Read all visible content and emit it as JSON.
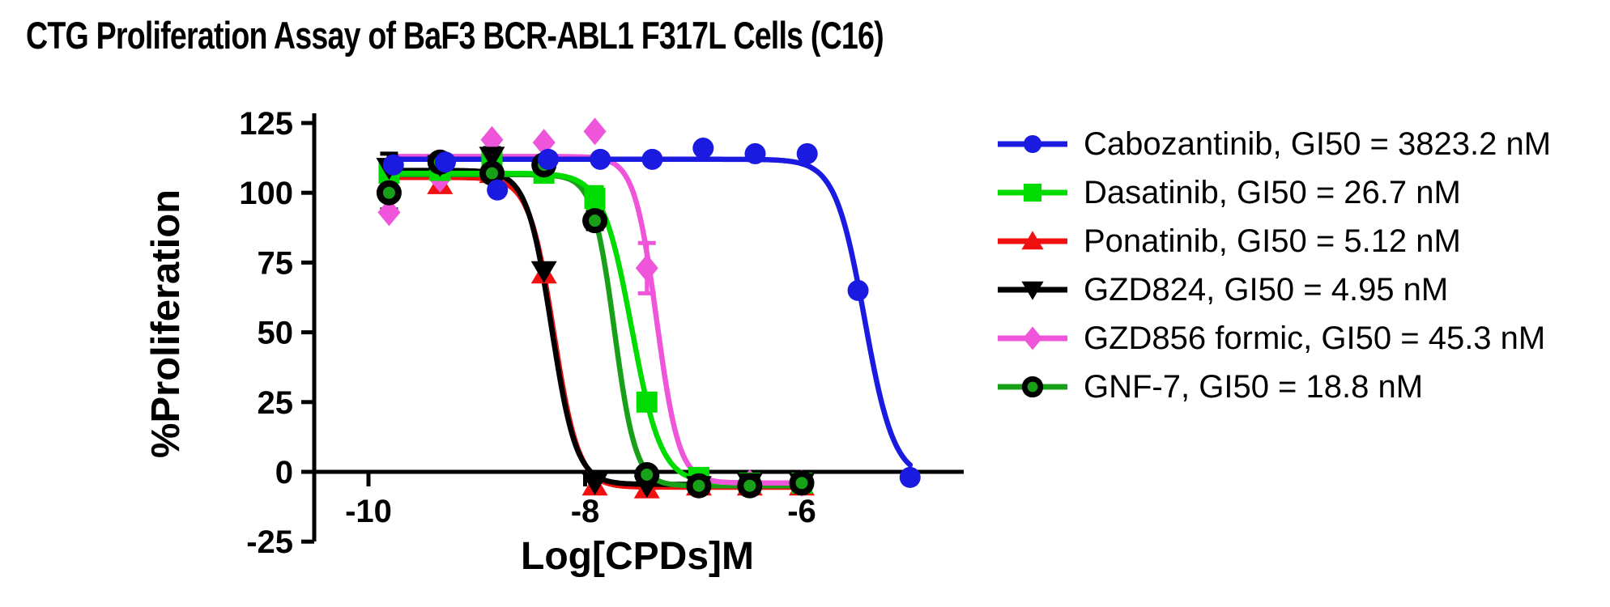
{
  "title": "CTG Proliferation Assay of BaF3 BCR-ABL1 F317L Cells (C16)",
  "chart_data": {
    "type": "line",
    "subtype": "dose-response scatter with 4-parameter logistic fit curves",
    "title": "CTG Proliferation Assay of BaF3 BCR-ABL1 F317L Cells (C16)",
    "xlabel": "Log[CPDs]M",
    "ylabel": "%Proliferation",
    "xticks": [
      -10,
      -8,
      -6
    ],
    "yticks": [
      125,
      100,
      75,
      50,
      25,
      0,
      -25
    ],
    "xlim": [
      -10.5,
      -4.5
    ],
    "ylim": [
      -25,
      125
    ],
    "grid": false,
    "legend_position": "right",
    "series": [
      {
        "key": "cabozantinib",
        "name": "Cabozantinib",
        "gi50": "3823.2 nM",
        "label": "Cabozantinib, GI50 = 3823.2 nM",
        "color": "#1A1AE0",
        "marker": "circle",
        "marker_fill": "#1A1AE0",
        "err_color": "#1A1AE0",
        "x": [
          -9.77,
          -9.29,
          -8.81,
          -8.34,
          -7.86,
          -7.38,
          -6.91,
          -6.43,
          -5.95,
          -5.48,
          -5.0
        ],
        "y": [
          110,
          111,
          101,
          112,
          112,
          112,
          116,
          114,
          114,
          65,
          -2
        ],
        "err": [
          0,
          0,
          0,
          0,
          0,
          0,
          0,
          0,
          0,
          0,
          0
        ],
        "fit": {
          "top": 112,
          "bottom": -2.5,
          "loggi50": -5.42,
          "hill": 3.2
        }
      },
      {
        "key": "dasatinib",
        "name": "Dasatinib",
        "gi50": "26.7 nM",
        "label": "Dasatinib, GI50 = 26.7 nM",
        "color": "#00DC00",
        "marker": "square",
        "marker_fill": "#00DC00",
        "err_color": "#00DC00",
        "x": [
          -9.81,
          -9.34,
          -8.86,
          -8.38,
          -7.91,
          -7.43,
          -6.95,
          -6.48,
          -6.0
        ],
        "y": [
          107,
          108,
          112,
          107,
          98,
          25,
          -2,
          -4,
          -4
        ],
        "err": [
          0,
          0,
          0,
          0,
          4,
          0,
          0,
          0,
          0
        ],
        "fit": {
          "top": 107,
          "bottom": -4,
          "loggi50": -7.57,
          "hill": 3.2
        }
      },
      {
        "key": "ponatinib",
        "name": "Ponatinib",
        "gi50": "5.12 nM",
        "label": "Ponatinib, GI50 = 5.12 nM",
        "color": "#F01010",
        "marker": "triangle-up",
        "marker_fill": "#F01010",
        "err_color": "#F01010",
        "x": [
          -9.81,
          -9.34,
          -8.86,
          -8.38,
          -7.91,
          -7.43,
          -6.95,
          -6.48,
          -6.0
        ],
        "y": [
          104,
          103,
          107,
          71,
          -5,
          -6,
          -5,
          -5,
          -5
        ],
        "err": [
          0,
          0,
          0,
          0,
          0,
          0,
          0,
          0,
          0
        ],
        "fit": {
          "top": 105.5,
          "bottom": -5.5,
          "loggi50": -8.29,
          "hill": 3.8
        }
      },
      {
        "key": "gzd824",
        "name": "GZD824",
        "gi50": "4.95 nM",
        "label": "GZD824, GI50 = 4.95 nM",
        "color": "#000000",
        "marker": "triangle-down",
        "marker_fill": "#000000",
        "err_color": "#000000",
        "x": [
          -9.81,
          -9.34,
          -8.86,
          -8.38,
          -7.91,
          -7.43,
          -6.95,
          -6.48,
          -6.0
        ],
        "y": [
          109,
          110,
          113,
          72,
          -4,
          -5,
          -5,
          -4,
          -4
        ],
        "err": [
          5,
          0,
          3,
          0,
          0,
          0,
          0,
          0,
          0
        ],
        "fit": {
          "top": 108,
          "bottom": -4.5,
          "loggi50": -8.31,
          "hill": 3.8
        }
      },
      {
        "key": "gzd856",
        "name": "GZD856 formic",
        "gi50": "45.3 nM",
        "label": "GZD856 formic, GI50 = 45.3 nM",
        "color": "#EE55DA",
        "marker": "diamond",
        "marker_fill": "#EE55DA",
        "err_color": "#EE55DA",
        "x": [
          -9.81,
          -9.34,
          -8.86,
          -8.38,
          -7.91,
          -7.43,
          -6.95,
          -6.48,
          -6.0
        ],
        "y": [
          93,
          105,
          119,
          118,
          122,
          73,
          -3,
          -4,
          -4
        ],
        "err": [
          0,
          0,
          0,
          0,
          0,
          9,
          0,
          0,
          0
        ],
        "fit": {
          "top": 113,
          "bottom": -4,
          "loggi50": -7.34,
          "hill": 4.2
        }
      },
      {
        "key": "gnf7",
        "name": "GNF-7",
        "gi50": "18.8 nM",
        "label": "GNF-7, GI50 = 18.8 nM",
        "color": "#18A018",
        "marker": "ring-circle",
        "marker_fill": "#18A018",
        "marker_ring": "#000000",
        "err_color": "#000000",
        "x": [
          -9.81,
          -9.34,
          -8.86,
          -8.38,
          -7.91,
          -7.43,
          -6.95,
          -6.48,
          -6.0
        ],
        "y": [
          100,
          111,
          107,
          110,
          90,
          -1,
          -5,
          -5,
          -4
        ],
        "err": [
          6,
          0,
          0,
          0,
          3,
          0,
          0,
          0,
          0
        ],
        "fit": {
          "top": 106.5,
          "bottom": -5,
          "loggi50": -7.73,
          "hill": 4.4
        }
      }
    ]
  }
}
